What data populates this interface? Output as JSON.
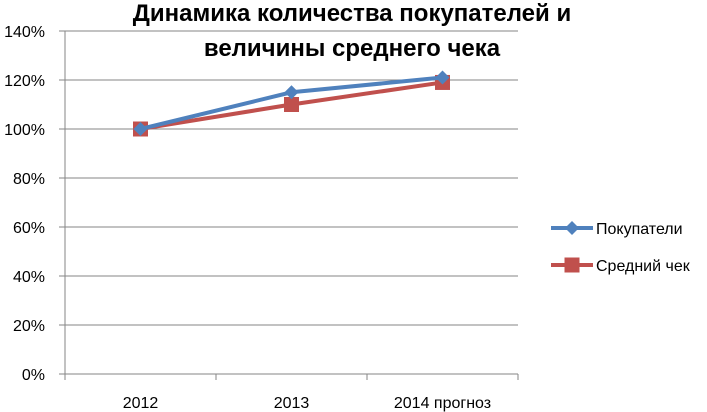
{
  "chart_data": {
    "type": "line",
    "title_lines": [
      "Динамика количества покупателей и",
      "величины среднего чека"
    ],
    "categories": [
      "2012",
      "2013",
      "2014 прогноз"
    ],
    "y_ticks": [
      "0%",
      "20%",
      "40%",
      "60%",
      "80%",
      "100%",
      "120%",
      "140%"
    ],
    "ylim": [
      0,
      140
    ],
    "grid": true,
    "legend_position": "right",
    "series": [
      {
        "name": "Покупатели",
        "values": [
          100,
          115,
          121
        ],
        "color": "#4f81bd",
        "marker": "diamond"
      },
      {
        "name": "Средний чек",
        "values": [
          100,
          110,
          119
        ],
        "color": "#c0504d",
        "marker": "square"
      }
    ]
  }
}
